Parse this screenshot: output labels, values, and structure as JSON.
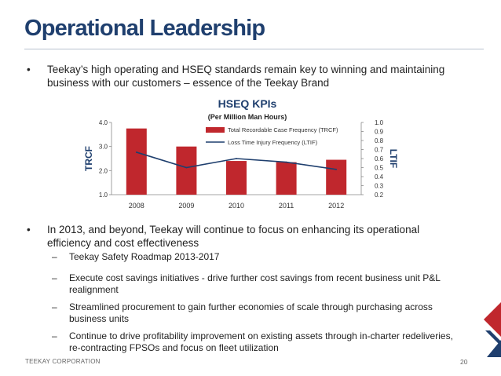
{
  "slide": {
    "title": "Operational Leadership",
    "bullets": [
      {
        "symbol": "•",
        "lines": [
          "Teekay’s high operating and HSEQ standards remain key to winning and maintaining",
          "business with our customers – essence of the Teekay Brand"
        ]
      },
      {
        "symbol": "•",
        "lines": [
          "In 2013, and beyond, Teekay will continue to focus on enhancing its operational",
          "efficiency and cost effectiveness"
        ]
      }
    ],
    "subbullets": [
      {
        "symbol": "–",
        "lines": [
          "Teekay Safety Roadmap 2013-2017"
        ]
      },
      {
        "symbol": "–",
        "lines": [
          "Execute cost savings initiatives - drive further cost savings from recent business unit P&L",
          "realignment"
        ]
      },
      {
        "symbol": "–",
        "lines": [
          "Streamlined procurement to gain further economies of scale through purchasing across",
          "business units"
        ]
      },
      {
        "symbol": "–",
        "lines": [
          "Continue to drive profitability improvement on existing assets through in-charter redeliveries,",
          "re-contracting FPSOs and focus on fleet utilization"
        ]
      }
    ],
    "footer": {
      "company": "TEEKAY CORPORATION",
      "page_number": "20"
    }
  },
  "colors": {
    "title": "#1f3f6e",
    "bar": "#c0272d",
    "line": "#1f3f6e",
    "brand_red": "#c0272d",
    "brand_blue": "#1f3f6e"
  },
  "chart_data": {
    "type": "bar",
    "title": "HSEQ KPIs",
    "subtitle": "(Per Million Man Hours)",
    "categories": [
      "2008",
      "2009",
      "2010",
      "2011",
      "2012"
    ],
    "series": [
      {
        "name": "Total Recordable Case Frequency (TRCF)",
        "type": "bar",
        "axis": "left",
        "values": [
          3.75,
          3.0,
          2.4,
          2.35,
          2.45
        ]
      },
      {
        "name": "Loss Time Injury Frequency (LTIF)",
        "type": "line",
        "axis": "right",
        "values": [
          0.67,
          0.5,
          0.6,
          0.56,
          0.48
        ]
      }
    ],
    "ylabel": "TRCF",
    "y2label": "LTIF",
    "ylim": [
      1.0,
      4.0
    ],
    "y2lim": [
      0.2,
      1.0
    ],
    "yticks": [
      "1.0",
      "2.0",
      "3.0",
      "4.0"
    ],
    "y2ticks": [
      "0.2",
      "0.3",
      "0.4",
      "0.5",
      "0.6",
      "0.7",
      "0.8",
      "0.9",
      "1.0"
    ],
    "legend_position": "top-right",
    "grid": false
  }
}
